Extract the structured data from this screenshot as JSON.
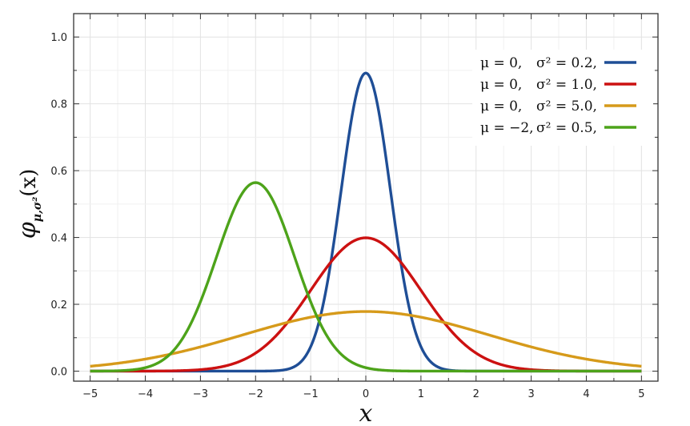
{
  "chart_data": {
    "type": "line",
    "title": "",
    "xlabel": "x",
    "ylabel": {
      "main": "φ",
      "subscript": "μ,σ²",
      "argument": "(x)"
    },
    "xlim": [
      -5.3,
      5.3
    ],
    "ylim": [
      -0.03,
      1.07
    ],
    "xticks": [
      "−5",
      "−4",
      "−3",
      "−2",
      "−1",
      "0",
      "1",
      "2",
      "3",
      "4",
      "5"
    ],
    "yticks": [
      "0.0",
      "0.2",
      "0.4",
      "0.6",
      "0.8",
      "1.0"
    ],
    "grid": true,
    "legend_position": "top-right",
    "series": [
      {
        "mu": 0,
        "sigma2": 0.2,
        "color": "#1f4e96",
        "legend": {
          "mu": "μ = 0,",
          "sigma": "σ² = 0.2,"
        }
      },
      {
        "mu": 0,
        "sigma2": 1.0,
        "color": "#cc1111",
        "legend": {
          "mu": "μ = 0,",
          "sigma": "σ² = 1.0,"
        }
      },
      {
        "mu": 0,
        "sigma2": 5.0,
        "color": "#d69a1a",
        "legend": {
          "mu": "μ = 0,",
          "sigma": "σ² = 5.0,"
        }
      },
      {
        "mu": -2,
        "sigma2": 0.5,
        "color": "#4da31a",
        "legend": {
          "mu": "μ = −2,",
          "sigma": "σ² = 0.5,"
        }
      }
    ]
  }
}
